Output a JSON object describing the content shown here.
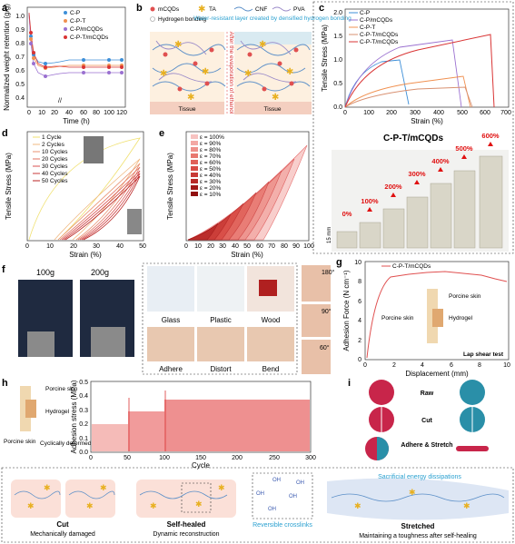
{
  "colors": {
    "cp": "#3d8fd8",
    "cpmcqds": "#f09050",
    "cpt": "#d89070",
    "cptmcqds": "#d93434",
    "cpm_b": "#9a70d0",
    "cyan": "#2aa0d0"
  },
  "panels": {
    "a": "a",
    "b": "b",
    "c": "c",
    "d": "d",
    "e": "e",
    "f": "f",
    "g": "g",
    "h": "h",
    "i": "i"
  },
  "a": {
    "ylabel": "Normalized weight retention (g/g)",
    "xlabel": "Time (h)",
    "xticks": [
      "0",
      "10",
      "20",
      "40",
      "60",
      "80",
      "100",
      "120"
    ],
    "yticks": [
      "0.4",
      "0.5",
      "0.6",
      "0.7",
      "0.8",
      "0.9",
      "1.0"
    ],
    "legend": [
      "C-P",
      "C-P-T",
      "C-P/mCQDs",
      "C-P-T/mCQDs"
    ]
  },
  "b": {
    "legend": [
      "mCQDs",
      "TA",
      "CNF",
      "PVA",
      "Hydrogen bonding"
    ],
    "note": "Water-resistant layer created by densified hydrogen bonding",
    "arrow": "After the evaporation of ethanol",
    "tissue": "Tissue"
  },
  "c": {
    "ylabel": "Tensile Stress (MPa)",
    "xlabel": "Strain (%)",
    "xticks": [
      "0",
      "100",
      "200",
      "300",
      "400",
      "500",
      "600",
      "700"
    ],
    "yticks": [
      "0.0",
      "0.5",
      "1.0",
      "1.5",
      "2.0"
    ],
    "legend": [
      "C-P",
      "C-P/mCQDs",
      "C-P-T",
      "C-P-T/mCQDs",
      "C-P-T/mCQDs"
    ],
    "photo_title": "C-P-T/mCQDs",
    "strains": [
      "0%",
      "100%",
      "200%",
      "300%",
      "400%",
      "500%",
      "600%"
    ],
    "scale": "15 mm"
  },
  "d": {
    "ylabel": "Tensile Stress (MPa)",
    "xlabel": "Strain (%)",
    "xticks": [
      "0",
      "10",
      "20",
      "30",
      "40",
      "50"
    ],
    "legend": [
      "1 Cycle",
      "2 Cycles",
      "10 Cycles",
      "20 Cycles",
      "30 Cycles",
      "40 Cycles",
      "50 Cycles"
    ]
  },
  "e": {
    "ylabel": "Tensile Stress (MPa)",
    "xlabel": "Strain (%)",
    "xticks": [
      "0",
      "10",
      "20",
      "30",
      "40",
      "50",
      "60",
      "70",
      "80",
      "90",
      "100"
    ],
    "legend": [
      "ε = 100%",
      "ε = 90%",
      "ε = 80%",
      "ε = 70%",
      "ε = 60%",
      "ε = 50%",
      "ε = 40%",
      "ε = 30%",
      "ε = 20%",
      "ε = 10%"
    ]
  },
  "f": {
    "weights": [
      "100g",
      "200g"
    ],
    "substrates": [
      "Glass",
      "Plastic",
      "Wood"
    ],
    "actions": [
      "Adhere",
      "Distort",
      "Bend"
    ],
    "angles": [
      "180°",
      "90°",
      "60°"
    ]
  },
  "g": {
    "ylabel": "Adhesion Force (N cm⁻¹)",
    "xlabel": "Displacement (mm)",
    "xticks": [
      "0",
      "2",
      "4",
      "6",
      "8",
      "10"
    ],
    "yticks": [
      "0",
      "2",
      "4",
      "6",
      "8",
      "10"
    ],
    "legend": "C-P-T/mCQDs",
    "labels": [
      "Porcine skin",
      "Hydrogel",
      "Porcine skin"
    ],
    "test": "Lap shear test"
  },
  "h": {
    "ylabel": "Adhesion stress (MPa)",
    "xlabel": "Cycle",
    "xticks": [
      "0",
      "50",
      "100",
      "150",
      "200",
      "250",
      "300"
    ],
    "yticks": [
      "0.0",
      "0.1",
      "0.2",
      "0.3",
      "0.4",
      "0.5"
    ],
    "labels": [
      "Porcine skin",
      "Hydrogel",
      "Porcine skin",
      "Cyclically deformed"
    ]
  },
  "i": {
    "rows": [
      "Raw",
      "Cut",
      "Adhere & Stretch"
    ]
  },
  "bottom": {
    "cut_title": "Cut",
    "cut_sub": "Mechanically damaged",
    "heal_title": "Self-healed",
    "heal_sub": "Dynamic reconstruction",
    "rev": "Reversible crosslinks",
    "str_title": "Stretched",
    "str_sub": "Maintaining a toughness after self-healing",
    "sac": "Sacrificial energy dissipations"
  }
}
